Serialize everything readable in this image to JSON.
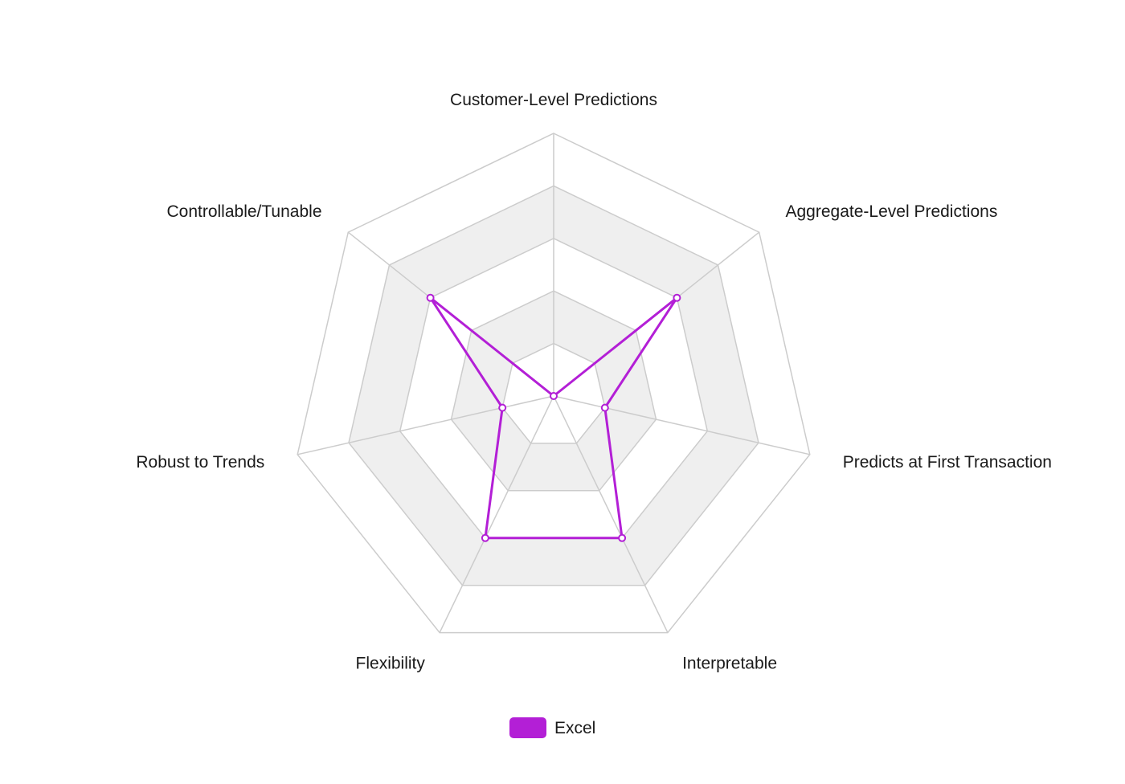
{
  "chart_data": {
    "type": "radar",
    "categories": [
      "Customer-Level Predictions",
      "Aggregate-Level Predictions",
      "Predicts at First Transaction",
      "Interpretable",
      "Flexibility",
      "Robust to Trends",
      "Controllable/Tunable"
    ],
    "rlim": [
      0,
      5
    ],
    "rings": 5,
    "grid": true,
    "ring_fill_alternate": "#efefef",
    "grid_color": "#cccccc",
    "legend_position": "bottom",
    "series": [
      {
        "name": "Excel",
        "color": "#b31fd6",
        "values": [
          0,
          3,
          1,
          3,
          3,
          1,
          3
        ]
      }
    ]
  }
}
